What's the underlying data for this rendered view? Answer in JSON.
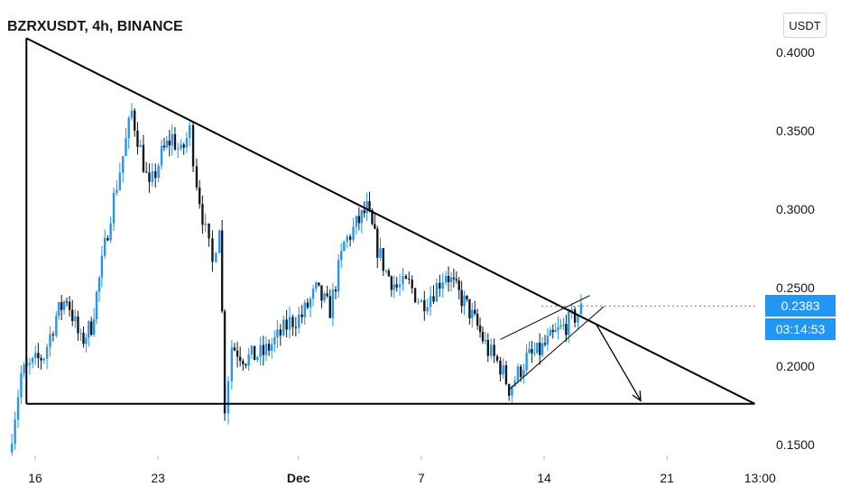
{
  "header": {
    "title": "BZRXUSDT, 4h, BINANCE",
    "currency_button": "USDT"
  },
  "price_badges": {
    "last_price": "0.2383",
    "countdown": "03:14:53"
  },
  "colors": {
    "up": "#2196f3",
    "down": "#131722",
    "drawing": "#000000",
    "badge": "#2196f3"
  },
  "chart_data": {
    "type": "candlestick",
    "title": "BZRXUSDT, 4h, BINANCE",
    "y_tick_labels": [
      "0.4000",
      "0.3500",
      "0.3000",
      "0.2500",
      "0.2000",
      "0.1500"
    ],
    "y_ticks": [
      0.4,
      0.35,
      0.3,
      0.25,
      0.2,
      0.15
    ],
    "ylim": [
      0.139,
      0.426
    ],
    "x_tick_labels": [
      "16",
      "23",
      "Dec",
      "7",
      "14",
      "21",
      "13:00"
    ],
    "x_tick_bold": [
      "Dec"
    ],
    "x_ticks": [
      0,
      7,
      15,
      22,
      29,
      36,
      41.3
    ],
    "x_start_day": 15,
    "x_end_day": 42.5,
    "x_day_reference": "16 = day 0, 23 = day 7, Dec = day 15, 7 = day 22, 14 = day 29, 21 = day 36",
    "path": [
      [
        -1.5,
        0.145
      ],
      [
        -0.8,
        0.195
      ],
      [
        0.5,
        0.207
      ],
      [
        1.2,
        0.232
      ],
      [
        1.8,
        0.244
      ],
      [
        2.6,
        0.215
      ],
      [
        3.2,
        0.226
      ],
      [
        3.8,
        0.265
      ],
      [
        4.3,
        0.298
      ],
      [
        5.0,
        0.334
      ],
      [
        5.5,
        0.362
      ],
      [
        6.0,
        0.338
      ],
      [
        6.5,
        0.312
      ],
      [
        7.2,
        0.335
      ],
      [
        7.8,
        0.346
      ],
      [
        8.3,
        0.335
      ],
      [
        8.8,
        0.35
      ],
      [
        9.2,
        0.318
      ],
      [
        9.7,
        0.285
      ],
      [
        10.1,
        0.265
      ],
      [
        10.5,
        0.292
      ],
      [
        10.8,
        0.175
      ],
      [
        11.2,
        0.213
      ],
      [
        12.0,
        0.205
      ],
      [
        13.0,
        0.208
      ],
      [
        13.8,
        0.218
      ],
      [
        14.5,
        0.228
      ],
      [
        15.2,
        0.232
      ],
      [
        16.0,
        0.248
      ],
      [
        16.8,
        0.236
      ],
      [
        17.6,
        0.278
      ],
      [
        18.3,
        0.29
      ],
      [
        18.9,
        0.3
      ],
      [
        19.5,
        0.275
      ],
      [
        20.0,
        0.26
      ],
      [
        20.6,
        0.25
      ],
      [
        21.3,
        0.252
      ],
      [
        22.0,
        0.24
      ],
      [
        22.7,
        0.248
      ],
      [
        23.4,
        0.26
      ],
      [
        24.0,
        0.248
      ],
      [
        24.6,
        0.238
      ],
      [
        25.2,
        0.225
      ],
      [
        25.8,
        0.21
      ],
      [
        26.5,
        0.2
      ],
      [
        27.0,
        0.186
      ],
      [
        27.5,
        0.195
      ],
      [
        28.0,
        0.205
      ],
      [
        28.6,
        0.208
      ],
      [
        29.2,
        0.215
      ],
      [
        29.8,
        0.222
      ],
      [
        30.4,
        0.228
      ],
      [
        31.1,
        0.236
      ]
    ],
    "pattern_lines": {
      "triangle_top": [
        [
          -0.5,
          0.409
        ],
        [
          41.0,
          0.176
        ]
      ],
      "triangle_left": [
        [
          -0.5,
          0.409
        ],
        [
          -0.5,
          0.176
        ]
      ],
      "triangle_base": [
        [
          -0.5,
          0.176
        ],
        [
          41.0,
          0.176
        ]
      ],
      "channel_upper": [
        [
          26.5,
          0.217
        ],
        [
          31.6,
          0.245
        ]
      ],
      "channel_lower": [
        [
          27.0,
          0.185
        ],
        [
          32.4,
          0.238
        ]
      ],
      "arrow_shaft": [
        [
          32.0,
          0.226
        ],
        [
          34.5,
          0.178
        ]
      ]
    }
  }
}
